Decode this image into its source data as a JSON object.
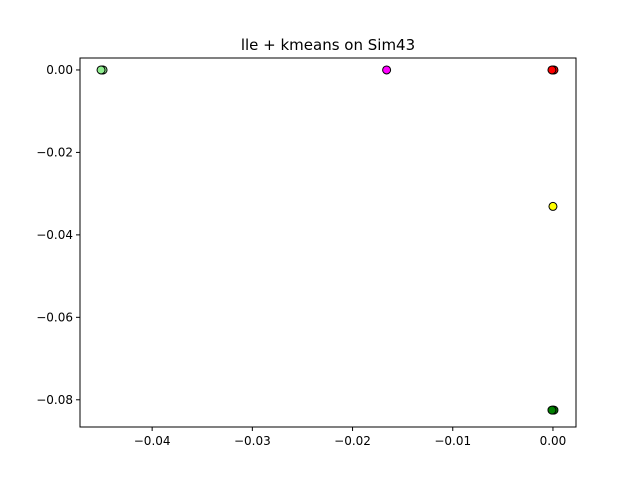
{
  "chart_data": {
    "type": "scatter",
    "title": "lle + kmeans on Sim43",
    "xlabel": "",
    "ylabel": "",
    "xlim": [
      -0.0472,
      0.0023
    ],
    "ylim": [
      -0.0866,
      0.0029
    ],
    "grid": false,
    "x_ticks": [
      -0.04,
      -0.03,
      -0.02,
      -0.01,
      0.0
    ],
    "x_tick_labels": [
      "−0.04",
      "−0.03",
      "−0.02",
      "−0.01",
      "0.00"
    ],
    "y_ticks": [
      0.0,
      -0.02,
      -0.04,
      -0.06,
      -0.08
    ],
    "y_tick_labels": [
      "0.00",
      "−0.02",
      "−0.04",
      "−0.06",
      "−0.08"
    ],
    "points": [
      {
        "x": -0.045,
        "y": 0.0,
        "color": "#90ee90"
      },
      {
        "x": -0.0449,
        "y": 0.0,
        "color": "#90ee90"
      },
      {
        "x": -0.0451,
        "y": 0.0,
        "color": "#90ee90"
      },
      {
        "x": -0.0166,
        "y": 0.0,
        "color": "#ff00ff"
      },
      {
        "x": 0.0,
        "y": 0.0,
        "color": "#ff0000"
      },
      {
        "x": 0.0001,
        "y": 0.0,
        "color": "#ff0000"
      },
      {
        "x": -0.0001,
        "y": 0.0,
        "color": "#ff0000"
      },
      {
        "x": 0.0,
        "y": -0.0331,
        "color": "#ffff00"
      },
      {
        "x": 0.0,
        "y": -0.0825,
        "color": "#008000"
      },
      {
        "x": 0.0001,
        "y": -0.0825,
        "color": "#008000"
      },
      {
        "x": -0.0001,
        "y": -0.0825,
        "color": "#008000"
      }
    ]
  }
}
